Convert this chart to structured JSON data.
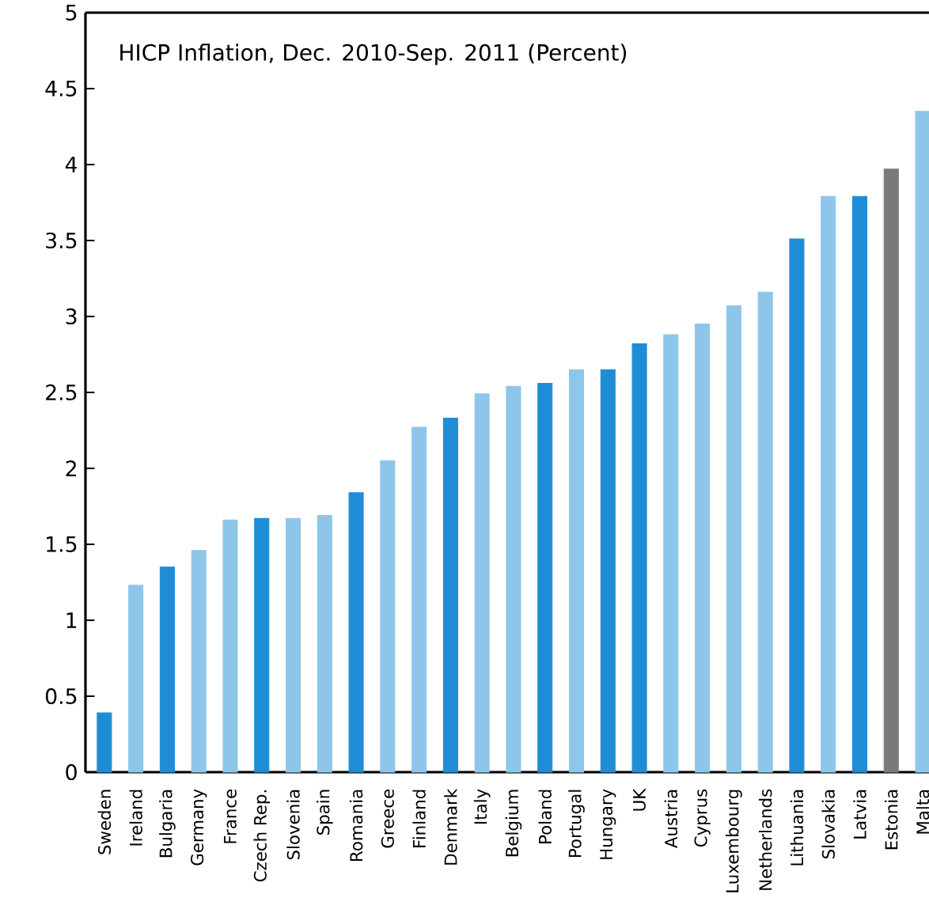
{
  "chart_data": {
    "type": "bar",
    "title": "HICP Inflation, Dec. 2010-Sep. 2011 (Percent)",
    "categories": [
      "Sweden",
      "Ireland",
      "Bulgaria",
      "Germany",
      "France",
      "Czech Rep.",
      "Slovenia",
      "Spain",
      "Romania",
      "Greece",
      "Finland",
      "Denmark",
      "Italy",
      "Belgium",
      "Poland",
      "Portugal",
      "Hungary",
      "UK",
      "Austria",
      "Cyprus",
      "Luxembourg",
      "Netherlands",
      "Lithuania",
      "Slovakia",
      "Latvia",
      "Estonia",
      "Malta"
    ],
    "series": [
      {
        "color": "#1f8dd6",
        "values": [
          0.39,
          null,
          1.35,
          null,
          null,
          1.67,
          null,
          null,
          1.84,
          null,
          null,
          2.33,
          null,
          null,
          2.56,
          null,
          2.65,
          2.82,
          null,
          null,
          null,
          null,
          3.51,
          null,
          3.79,
          null,
          null
        ]
      },
      {
        "color": "#8ec6ea",
        "values": [
          null,
          1.23,
          null,
          1.46,
          1.66,
          null,
          1.67,
          1.69,
          null,
          2.05,
          2.27,
          null,
          2.49,
          2.54,
          null,
          2.65,
          null,
          null,
          2.88,
          2.95,
          3.07,
          3.16,
          null,
          3.79,
          null,
          null,
          4.35
        ]
      },
      {
        "color": "#7a7a7a",
        "values": [
          null,
          null,
          null,
          null,
          null,
          null,
          null,
          null,
          null,
          null,
          null,
          null,
          null,
          null,
          null,
          null,
          null,
          null,
          null,
          null,
          null,
          null,
          null,
          null,
          null,
          3.97,
          null
        ]
      }
    ],
    "ylim": [
      0,
      5
    ],
    "yticks": [
      0,
      0.5,
      1,
      1.5,
      2,
      2.5,
      3,
      3.5,
      4,
      4.5,
      5
    ]
  }
}
